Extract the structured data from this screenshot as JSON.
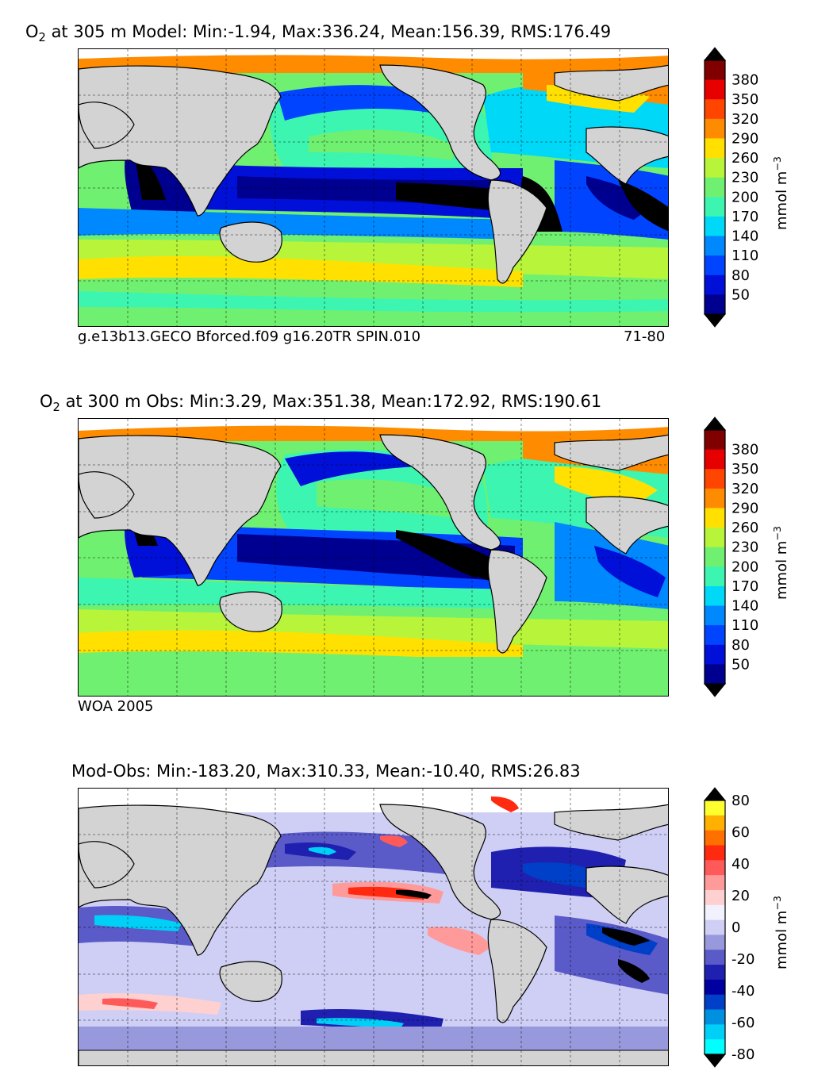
{
  "panels": [
    {
      "title_prefix": "O",
      "title_sub": "2",
      "title_rest": " at 305 m Model: Min:-1.94, Max:336.24, Mean:156.39, RMS:176.49",
      "footer_left": "g.e13b13.GECO Bforced.f09 g16.20TR SPIN.010",
      "footer_right": "71-80",
      "colorbar": {
        "ticks": [
          "380",
          "350",
          "320",
          "290",
          "260",
          "230",
          "200",
          "170",
          "140",
          "110",
          "80",
          "50"
        ],
        "colors": [
          "#800000",
          "#e60000",
          "#ff4500",
          "#ff8c00",
          "#ffe000",
          "#b8f53a",
          "#70f070",
          "#3cf5b0",
          "#00d8f8",
          "#0088ff",
          "#0044ff",
          "#0010d8",
          "#000090"
        ],
        "top_color": "#000000",
        "bottom_color": "#000000",
        "unit": "mmol m",
        "unit_sup": "−3"
      }
    },
    {
      "title_prefix": "O",
      "title_sub": "2",
      "title_rest": " at 300 m Obs: Min:3.29, Max:351.38, Mean:172.92, RMS:190.61",
      "footer_left": "WOA 2005",
      "footer_right": "",
      "colorbar": {
        "ticks": [
          "380",
          "350",
          "320",
          "290",
          "260",
          "230",
          "200",
          "170",
          "140",
          "110",
          "80",
          "50"
        ],
        "colors": [
          "#800000",
          "#e60000",
          "#ff4500",
          "#ff8c00",
          "#ffe000",
          "#b8f53a",
          "#70f070",
          "#3cf5b0",
          "#00d8f8",
          "#0088ff",
          "#0044ff",
          "#0010d8",
          "#000090"
        ],
        "top_color": "#000000",
        "bottom_color": "#000000",
        "unit": "mmol m",
        "unit_sup": "−3"
      }
    },
    {
      "title_prefix": "",
      "title_sub": "",
      "title_rest": "Mod-Obs: Min:-183.20, Max:310.33, Mean:-10.40, RMS:26.83",
      "footer_left": "",
      "footer_right": "",
      "colorbar": {
        "ticks": [
          "80",
          "60",
          "40",
          "20",
          "0",
          "-20",
          "-40",
          "-60",
          "-80"
        ],
        "colors": [
          "#ffff30",
          "#ffb000",
          "#ff7000",
          "#ff2a10",
          "#ff5a5a",
          "#ff9a9a",
          "#ffd0d0",
          "#f2f2ff",
          "#cfcff5",
          "#9898dd",
          "#5a5ac8",
          "#2020b0",
          "#0000a0",
          "#0040c8",
          "#0090e0",
          "#00d0f8",
          "#00ffff"
        ],
        "top_color": "#000000",
        "bottom_color": "#000000",
        "unit": "mmol m",
        "unit_sup": "−3"
      }
    }
  ],
  "colors": {
    "land": "#d3d3d3",
    "ice": "#ffffff",
    "frame": "#000000"
  }
}
